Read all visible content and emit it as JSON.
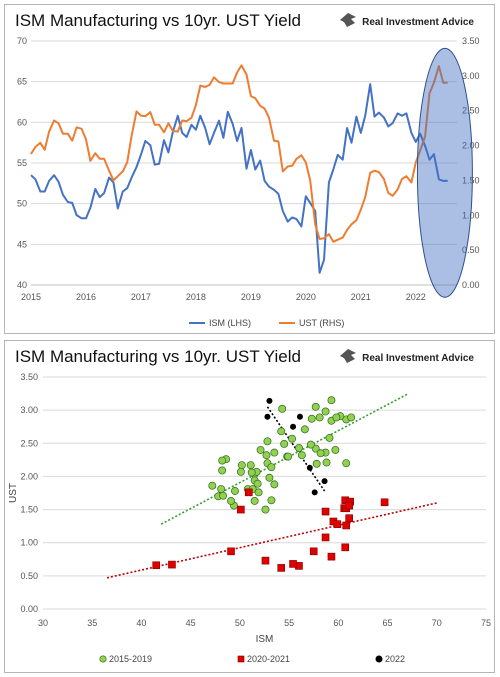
{
  "chart_data": [
    {
      "type": "line",
      "title": "ISM Manufacturing vs 10yr. UST Yield",
      "logo_text": "Real Investment Advice",
      "x_ticks": [
        "2015",
        "2016",
        "2017",
        "2018",
        "2019",
        "2020",
        "2021",
        "2022"
      ],
      "x_range": [
        2015.0,
        2022.75
      ],
      "y_left": {
        "range": [
          40,
          70
        ],
        "ticks": [
          "40",
          "45",
          "50",
          "55",
          "60",
          "65",
          "70"
        ]
      },
      "y_right": {
        "range": [
          0,
          3.5
        ],
        "ticks": [
          "0.00",
          "0.50",
          "1.00",
          "1.50",
          "2.00",
          "2.50",
          "3.00",
          "3.50"
        ]
      },
      "highlight": {
        "x_center": 2022.53,
        "y_center": 53.8,
        "x_radius": 0.5,
        "y_radius": 15.3,
        "color": "#4472c4"
      },
      "series": [
        {
          "name": "ISM (LHS)",
          "axis": "left",
          "color": "#4472c4",
          "x": [
            2015.0,
            2015.08,
            2015.17,
            2015.25,
            2015.33,
            2015.42,
            2015.5,
            2015.58,
            2015.67,
            2015.75,
            2015.83,
            2015.92,
            2016.0,
            2016.08,
            2016.17,
            2016.25,
            2016.33,
            2016.42,
            2016.5,
            2016.58,
            2016.67,
            2016.75,
            2016.83,
            2016.92,
            2017.0,
            2017.08,
            2017.17,
            2017.25,
            2017.33,
            2017.42,
            2017.5,
            2017.58,
            2017.67,
            2017.75,
            2017.83,
            2017.92,
            2018.0,
            2018.08,
            2018.17,
            2018.25,
            2018.33,
            2018.42,
            2018.5,
            2018.58,
            2018.67,
            2018.75,
            2018.83,
            2018.92,
            2019.0,
            2019.08,
            2019.17,
            2019.25,
            2019.33,
            2019.42,
            2019.5,
            2019.58,
            2019.67,
            2019.75,
            2019.83,
            2019.92,
            2020.0,
            2020.08,
            2020.17,
            2020.25,
            2020.33,
            2020.42,
            2020.5,
            2020.58,
            2020.67,
            2020.75,
            2020.83,
            2020.92,
            2021.0,
            2021.08,
            2021.17,
            2021.25,
            2021.33,
            2021.42,
            2021.5,
            2021.58,
            2021.67,
            2021.75,
            2021.83,
            2021.92,
            2022.0,
            2022.08,
            2022.17,
            2022.25,
            2022.33,
            2022.42,
            2022.5,
            2022.58
          ],
          "values": [
            53.5,
            53.0,
            51.5,
            51.5,
            52.8,
            53.5,
            52.7,
            51.1,
            50.2,
            50.1,
            48.6,
            48.2,
            48.2,
            49.5,
            51.8,
            50.8,
            51.3,
            53.2,
            52.6,
            49.4,
            51.5,
            51.9,
            53.2,
            54.5,
            56.0,
            57.7,
            57.2,
            54.8,
            54.9,
            57.8,
            56.3,
            58.8,
            60.8,
            58.7,
            58.2,
            59.7,
            59.1,
            60.8,
            59.3,
            57.3,
            58.7,
            60.2,
            58.1,
            61.3,
            59.8,
            57.7,
            59.3,
            54.3,
            56.6,
            54.2,
            55.3,
            52.8,
            52.1,
            51.7,
            51.2,
            49.1,
            47.8,
            48.3,
            48.1,
            47.2,
            50.9,
            50.1,
            49.1,
            41.5,
            43.1,
            52.6,
            54.2,
            56.0,
            55.4,
            59.3,
            57.5,
            60.7,
            58.7,
            60.8,
            64.7,
            60.7,
            61.2,
            60.6,
            59.5,
            59.9,
            61.1,
            60.8,
            61.1,
            58.7,
            57.6,
            58.6,
            57.1,
            55.4,
            56.1,
            53.0,
            52.8,
            52.8
          ]
        },
        {
          "name": "UST (RHS)",
          "axis": "right",
          "color": "#ed7d31",
          "x": [
            2015.0,
            2015.08,
            2015.17,
            2015.25,
            2015.33,
            2015.42,
            2015.5,
            2015.58,
            2015.67,
            2015.75,
            2015.83,
            2015.92,
            2016.0,
            2016.08,
            2016.17,
            2016.25,
            2016.33,
            2016.42,
            2016.5,
            2016.58,
            2016.67,
            2016.75,
            2016.83,
            2016.92,
            2017.0,
            2017.08,
            2017.17,
            2017.25,
            2017.33,
            2017.42,
            2017.5,
            2017.58,
            2017.67,
            2017.75,
            2017.83,
            2017.92,
            2018.0,
            2018.08,
            2018.17,
            2018.25,
            2018.33,
            2018.42,
            2018.5,
            2018.58,
            2018.67,
            2018.75,
            2018.83,
            2018.92,
            2019.0,
            2019.08,
            2019.17,
            2019.25,
            2019.33,
            2019.42,
            2019.5,
            2019.58,
            2019.67,
            2019.75,
            2019.83,
            2019.92,
            2020.0,
            2020.08,
            2020.17,
            2020.25,
            2020.33,
            2020.42,
            2020.5,
            2020.58,
            2020.67,
            2020.75,
            2020.83,
            2020.92,
            2021.0,
            2021.08,
            2021.17,
            2021.25,
            2021.33,
            2021.42,
            2021.5,
            2021.58,
            2021.67,
            2021.75,
            2021.83,
            2021.92,
            2022.0,
            2022.08,
            2022.17,
            2022.25,
            2022.33,
            2022.42,
            2022.5,
            2022.58
          ],
          "values": [
            1.88,
            1.98,
            2.04,
            1.94,
            2.2,
            2.36,
            2.32,
            2.17,
            2.17,
            2.07,
            2.26,
            2.24,
            2.09,
            1.78,
            1.89,
            1.81,
            1.81,
            1.64,
            1.5,
            1.56,
            1.63,
            1.76,
            2.14,
            2.49,
            2.43,
            2.42,
            2.48,
            2.3,
            2.3,
            2.19,
            2.32,
            2.21,
            2.2,
            2.36,
            2.35,
            2.4,
            2.58,
            2.86,
            2.84,
            2.87,
            2.98,
            2.91,
            2.89,
            2.89,
            2.89,
            3.05,
            3.15,
            3.02,
            2.71,
            2.68,
            2.57,
            2.53,
            2.4,
            2.07,
            2.06,
            1.63,
            1.7,
            1.71,
            1.81,
            1.86,
            1.76,
            1.5,
            0.87,
            0.66,
            0.67,
            0.73,
            0.62,
            0.65,
            0.68,
            0.79,
            0.87,
            0.93,
            1.08,
            1.26,
            1.61,
            1.64,
            1.62,
            1.52,
            1.32,
            1.28,
            1.37,
            1.52,
            1.56,
            1.47,
            1.76,
            1.93,
            2.13,
            2.75,
            2.9,
            3.14,
            2.9,
            2.9
          ]
        }
      ],
      "legend": [
        "ISM (LHS)",
        "UST (RHS)"
      ]
    },
    {
      "type": "scatter",
      "title": "ISM Manufacturing vs 10yr. UST Yield",
      "logo_text": "Real Investment Advice",
      "xlabel": "ISM",
      "ylabel": "UST",
      "xlim": [
        30,
        75
      ],
      "ylim": [
        0,
        3.5
      ],
      "x_ticks": [
        "30",
        "35",
        "40",
        "45",
        "50",
        "55",
        "60",
        "65",
        "70",
        "75"
      ],
      "y_ticks": [
        "0.00",
        "0.50",
        "1.00",
        "1.50",
        "2.00",
        "2.50",
        "3.00",
        "3.50"
      ],
      "series": [
        {
          "name": "2015-2019",
          "marker": "circle",
          "color": "#92d050",
          "points": [
            [
              53.5,
              1.88
            ],
            [
              53.0,
              1.98
            ],
            [
              51.5,
              2.04
            ],
            [
              51.5,
              1.94
            ],
            [
              52.8,
              2.2
            ],
            [
              53.5,
              2.36
            ],
            [
              52.7,
              2.32
            ],
            [
              51.1,
              2.17
            ],
            [
              50.2,
              2.17
            ],
            [
              50.1,
              2.07
            ],
            [
              48.6,
              2.26
            ],
            [
              48.2,
              2.24
            ],
            [
              48.2,
              2.09
            ],
            [
              49.5,
              1.78
            ],
            [
              51.8,
              1.89
            ],
            [
              50.8,
              1.81
            ],
            [
              51.3,
              1.81
            ],
            [
              53.2,
              1.64
            ],
            [
              52.6,
              1.5
            ],
            [
              49.4,
              1.56
            ],
            [
              51.5,
              1.63
            ],
            [
              51.9,
              1.76
            ],
            [
              53.2,
              2.14
            ],
            [
              54.5,
              2.49
            ],
            [
              56.0,
              2.43
            ],
            [
              57.7,
              2.42
            ],
            [
              57.2,
              2.48
            ],
            [
              54.8,
              2.3
            ],
            [
              54.9,
              2.3
            ],
            [
              57.8,
              2.19
            ],
            [
              56.3,
              2.32
            ],
            [
              58.8,
              2.21
            ],
            [
              60.8,
              2.2
            ],
            [
              58.7,
              2.36
            ],
            [
              58.2,
              2.35
            ],
            [
              59.7,
              2.4
            ],
            [
              59.1,
              2.58
            ],
            [
              60.8,
              2.86
            ],
            [
              59.3,
              2.84
            ],
            [
              57.3,
              2.87
            ],
            [
              58.7,
              2.98
            ],
            [
              60.2,
              2.91
            ],
            [
              58.1,
              2.89
            ],
            [
              61.3,
              2.89
            ],
            [
              59.8,
              2.89
            ],
            [
              57.7,
              3.05
            ],
            [
              59.3,
              3.15
            ],
            [
              54.3,
              3.02
            ],
            [
              56.6,
              2.71
            ],
            [
              54.2,
              2.68
            ],
            [
              55.3,
              2.57
            ],
            [
              52.8,
              2.53
            ],
            [
              52.1,
              2.4
            ],
            [
              51.7,
              2.07
            ],
            [
              51.2,
              2.06
            ],
            [
              49.1,
              1.63
            ],
            [
              47.8,
              1.7
            ],
            [
              48.3,
              1.71
            ],
            [
              48.1,
              1.81
            ],
            [
              47.2,
              1.86
            ]
          ]
        },
        {
          "name": "2020-2021",
          "marker": "square",
          "color": "#e00000",
          "points": [
            [
              50.9,
              1.76
            ],
            [
              50.1,
              1.5
            ],
            [
              49.1,
              0.87
            ],
            [
              41.5,
              0.66
            ],
            [
              43.1,
              0.67
            ],
            [
              52.6,
              0.73
            ],
            [
              54.2,
              0.62
            ],
            [
              56.0,
              0.65
            ],
            [
              55.4,
              0.68
            ],
            [
              59.3,
              0.79
            ],
            [
              57.5,
              0.87
            ],
            [
              60.7,
              0.93
            ],
            [
              58.7,
              1.08
            ],
            [
              60.8,
              1.26
            ],
            [
              64.7,
              1.61
            ],
            [
              60.7,
              1.64
            ],
            [
              61.2,
              1.62
            ],
            [
              60.6,
              1.52
            ],
            [
              59.5,
              1.32
            ],
            [
              59.9,
              1.28
            ],
            [
              61.1,
              1.37
            ],
            [
              60.8,
              1.52
            ],
            [
              61.1,
              1.56
            ],
            [
              58.7,
              1.47
            ]
          ]
        },
        {
          "name": "2022",
          "marker": "circle",
          "color": "#000000",
          "points": [
            [
              57.6,
              1.76
            ],
            [
              58.6,
              1.93
            ],
            [
              57.1,
              2.13
            ],
            [
              55.4,
              2.75
            ],
            [
              56.1,
              2.9
            ],
            [
              53.0,
              3.14
            ],
            [
              52.8,
              2.9
            ]
          ]
        }
      ],
      "trendlines": [
        {
          "series": "2015-2019",
          "color": "#33a02c",
          "x": [
            42,
            67
          ],
          "y": [
            1.28,
            3.24
          ]
        },
        {
          "series": "2020-2021",
          "color": "#c00000",
          "x": [
            36.5,
            70
          ],
          "y": [
            0.47,
            1.6
          ]
        },
        {
          "series": "2022",
          "color": "#000000",
          "x": [
            52.8,
            58.6
          ],
          "y": [
            3.05,
            1.78
          ]
        }
      ],
      "legend": [
        "2015-2019",
        "2020-2021",
        "2022"
      ]
    }
  ]
}
